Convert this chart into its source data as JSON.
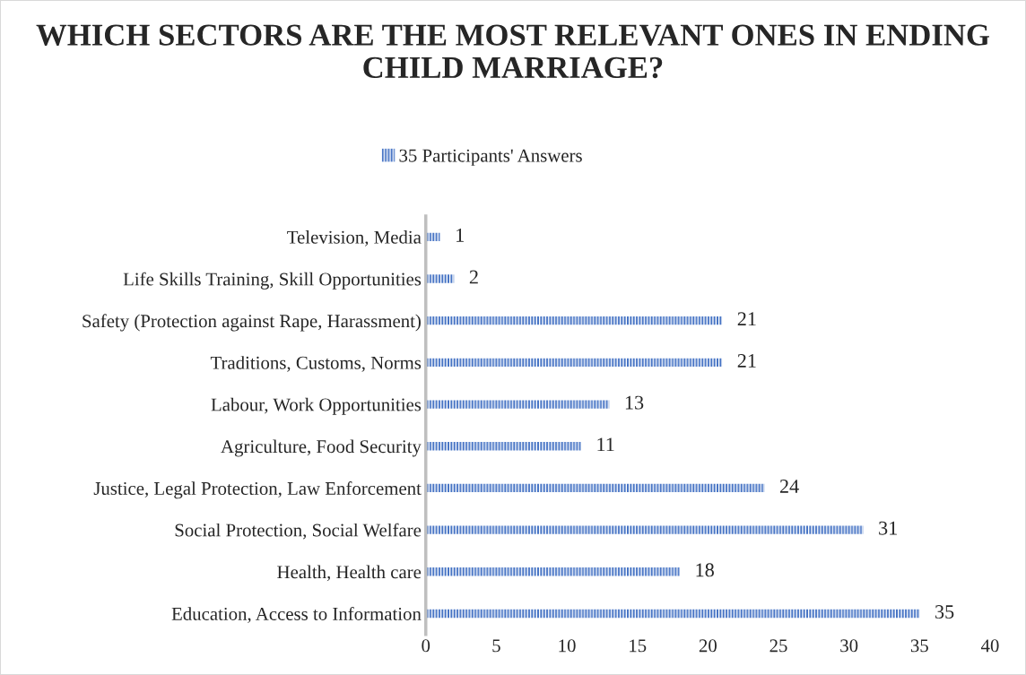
{
  "chart_data": {
    "type": "bar",
    "orientation": "horizontal",
    "title": "WHICH SECTORS ARE THE MOST RELEVANT ONES IN ENDING CHILD MARRIAGE?",
    "categories": [
      "Television, Media",
      "Life Skills Training, Skill Opportunities",
      "Safety (Protection against Rape, Harassment)",
      "Traditions, Customs, Norms",
      "Labour, Work Opportunities",
      "Agriculture, Food Security",
      "Justice, Legal Protection, Law Enforcement",
      "Social Protection, Social Welfare",
      "Health, Health care",
      "Education, Access to Information"
    ],
    "series": [
      {
        "name": "35 Participants' Answers",
        "color": "#4472c4",
        "values": [
          1,
          2,
          21,
          21,
          13,
          11,
          24,
          31,
          18,
          35
        ]
      }
    ],
    "xlim": [
      0,
      40
    ],
    "xticks": [
      0,
      5,
      10,
      15,
      20,
      25,
      30,
      35,
      40
    ],
    "data_labels": true,
    "legend": "top",
    "grid": false
  }
}
